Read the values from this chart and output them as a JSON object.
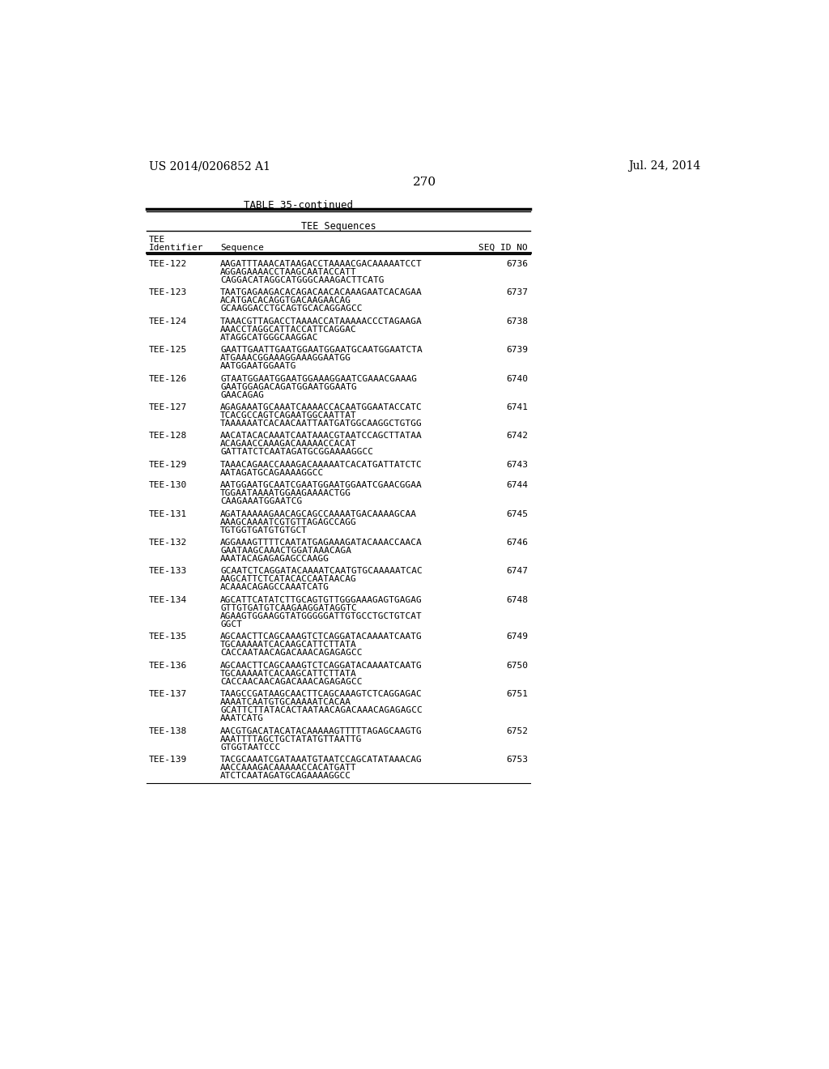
{
  "patent_number": "US 2014/0206852 A1",
  "patent_date": "Jul. 24, 2014",
  "page_number": "270",
  "table_title": "TABLE 35-continued",
  "table_subtitle": "TEE Sequences",
  "col1_header_line1": "TEE",
  "col1_header_line2": "Identifier",
  "col2_header": "Sequence",
  "col3_header": "SEQ ID NO",
  "entries": [
    {
      "id": "TEE-122",
      "seq": "AAGATTTAAACATAAGACCTAAAACGACAAAAATCCT\nAGGAGAAAACCTAAGCAATACCATT\nCAGGACATAGGCATGGGCAAAGACTTCATG",
      "seqid": "6736"
    },
    {
      "id": "TEE-123",
      "seq": "TAATGAGAAGACACAGACAACACAAAGAATCACAGAA\nACATGACACАGGTGACAAGAACAG\nGCAAGGACCTGCAGTGCACAGGAGCC",
      "seqid": "6737"
    },
    {
      "id": "TEE-124",
      "seq": "TAAACGTTAGACCTAAAACCATAAAAACCCTAGAAGA\nAAACCTAGGCATTACCATTCAGGAC\nATAGGCATGGGCAAGGAC",
      "seqid": "6738"
    },
    {
      "id": "TEE-125",
      "seq": "GAATTGAATTGAATGGAATGGAATGCAATGGAATCTA\nATGAAACGGAAAGGAAAGGAATGG\nAATGGAATGGAATG",
      "seqid": "6739"
    },
    {
      "id": "TEE-126",
      "seq": "GTAATGGAATGGAATGGAAAGGAATCGAAACGAAAG\nGAATGGAGACAGATGGAATGGAATG\nGAACAGAG",
      "seqid": "6740"
    },
    {
      "id": "TEE-127",
      "seq": "AGAGAAATGCAAATCAAAACCACAATGGAATACCATC\nTCACGCCAGTCAGAATGGCAATTAT\nTAAAAAATCACAACAAТТAATGATGGCAAGGCTGTGG",
      "seqid": "6741"
    },
    {
      "id": "TEE-128",
      "seq": "AACATACACAAATCAATAAACGTAATCCAGCTTATAA\nACAGAACCАAAGАCAAAAACCACAT\nGATTATCTCAATAGATGCGGAAAAGGCC",
      "seqid": "6742"
    },
    {
      "id": "TEE-129",
      "seq": "TAAACAGAACCAAAGACAAAAATCACATGATTATCTC\nAATAGATGCAGAAAAGGCC",
      "seqid": "6743"
    },
    {
      "id": "TEE-130",
      "seq": "AATGGAATGCAATCGAATGGAATGGAATCGAACGGAA\nTGGAATAAAATGGAAGAAAACTGG\nCAAGAAATGGAATCG",
      "seqid": "6744"
    },
    {
      "id": "TEE-131",
      "seq": "AGATAAAAAGAACAGCAGCCAAAATGACAAAAGCAA\nAAAGCAAAATCGTGТТAGAGCCAGG\nTGTGGTGATGTGTGCT",
      "seqid": "6745"
    },
    {
      "id": "TEE-132",
      "seq": "AGGAAAGTTTTCAATATGAGAAAGATACAAACCAACA\nGAATAAGCAAACTGGATAAACAGA\nAAATACAGAGAGAGCCAAGG",
      "seqid": "6746"
    },
    {
      "id": "TEE-133",
      "seq": "GCAATCTCAGGATACAAAATCAATGTGCAAAAATCAC\nAAGCATTCTCATACACCAATAACAG\nACAAACАGAGCCAAATCATG",
      "seqid": "6747"
    },
    {
      "id": "TEE-134",
      "seq": "AGCATTCATATCTTGCAGTGTTGGGAAAGAGTGAGAG\nGTTGTGATGTCAAGAAGGATАGGTC\nAGAAGTGGAAGGTATGGGGGATTGTGCCTGCTGTCAT\nGGCT",
      "seqid": "6748"
    },
    {
      "id": "TEE-135",
      "seq": "AGCAACTTCAGCAAAGTCTCAGGATACAAAATCAATG\nTGCAAAAATCACAAGCATTCTTATA\nCACCAATAACAGACAAACAGAGAGCC",
      "seqid": "6749"
    },
    {
      "id": "TEE-136",
      "seq": "AGCAACTTCAGCAAAGTCTCAGGATACAAAATCAATG\nTGCAAAAATCACAAGCATTCTTATA\nCACCAACAACAGАCАAACAGAGAGCC",
      "seqid": "6750"
    },
    {
      "id": "TEE-137",
      "seq": "TAAGCCGATAAGCAACTTCAGCAAAGTCTCAGGAGAC\nAAAATCAATGTGCAAAAATCACAA\nGCATTCTTATACАCТAATAACAGACAAACAGAGAGCC\nAAATCATG",
      "seqid": "6751"
    },
    {
      "id": "TEE-138",
      "seq": "AACGTGACATACATACAAAAAGTTTTTAGAGCAAGTG\nAAATTTTAGCTGCTATATGTTAATTG\nGTGGTAATCCC",
      "seqid": "6752"
    },
    {
      "id": "TEE-139",
      "seq": "TACGCAAATCGATAAATGTAATCCAGCATATAAACAG\nAACCАAAGАCAAAAACCACATGATT\nATCTCAATAGATGCAGAAAAGGCC",
      "seqid": "6753"
    }
  ],
  "bg_color": "#ffffff",
  "text_color": "#000000"
}
